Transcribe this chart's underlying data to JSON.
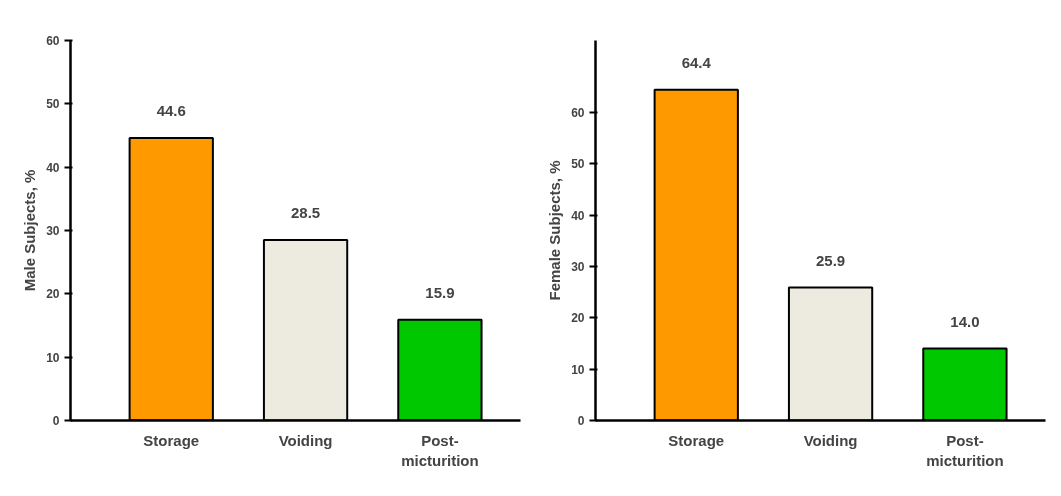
{
  "chart_data": [
    {
      "type": "bar",
      "ylabel": "Male Subjects, %",
      "categories": [
        "Storage",
        "Voiding",
        "Post-\nmicturition"
      ],
      "values": [
        44.6,
        28.5,
        15.9
      ],
      "value_labels": [
        "44.6",
        "28.5",
        "15.9"
      ],
      "colors": [
        "#ff9900",
        "#edebe0",
        "#00c800"
      ],
      "ylim": [
        0,
        60
      ],
      "yticks": [
        0,
        10,
        20,
        30,
        40,
        50,
        60
      ]
    },
    {
      "type": "bar",
      "ylabel": "Female Subjects, %",
      "categories": [
        "Storage",
        "Voiding",
        "Post-\nmicturition"
      ],
      "values": [
        64.4,
        25.9,
        14.0
      ],
      "value_labels": [
        "64.4",
        "25.9",
        "14.0"
      ],
      "colors": [
        "#ff9900",
        "#edebe0",
        "#00c800"
      ],
      "ylim": [
        0,
        74
      ],
      "yticks": [
        0,
        10,
        20,
        30,
        40,
        50,
        60
      ]
    }
  ]
}
